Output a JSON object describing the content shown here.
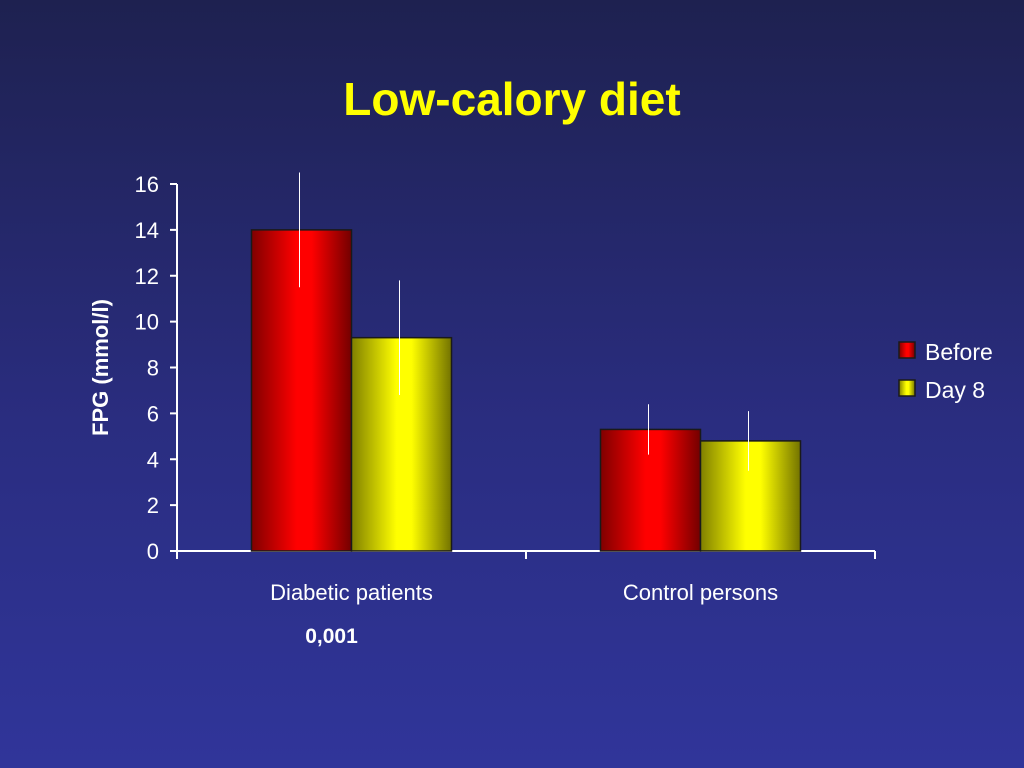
{
  "chart_data": {
    "type": "bar",
    "title": "Low-calory diet",
    "ylabel": "FPG (mmol/l)",
    "xlabel": "",
    "ylim": [
      0,
      16
    ],
    "yticks": [
      0,
      2,
      4,
      6,
      8,
      10,
      12,
      14,
      16
    ],
    "categories": [
      "Diabetic patients",
      "Control persons"
    ],
    "category_notes": [
      "0,001",
      ""
    ],
    "series": [
      {
        "name": "Before",
        "color": "#ff0000",
        "values": [
          14.0,
          5.3
        ],
        "error": [
          2.5,
          1.1
        ]
      },
      {
        "name": "Day 8",
        "color": "#ffff00",
        "values": [
          9.3,
          4.8
        ],
        "error": [
          2.5,
          1.3
        ]
      }
    ],
    "grid": false,
    "legend": "right"
  }
}
